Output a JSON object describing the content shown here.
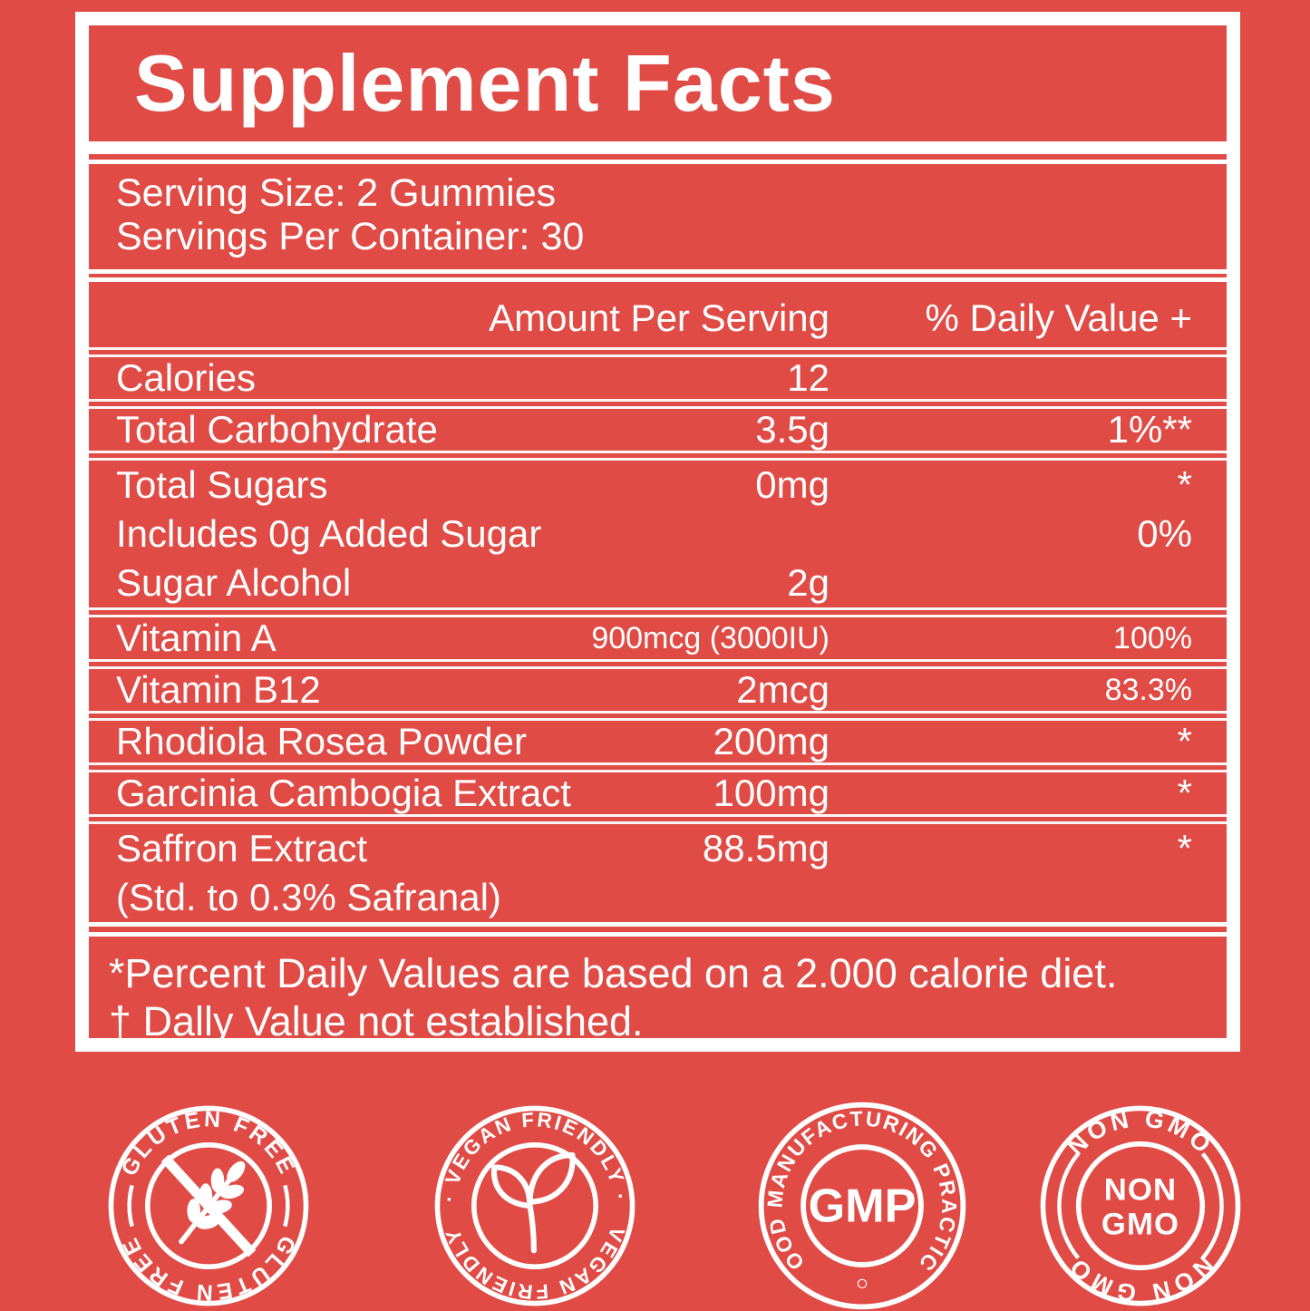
{
  "colors": {
    "background": "#e04b45",
    "foreground": "#ffffff"
  },
  "title": "Supplement Facts",
  "serving_info": {
    "serving_size": "Serving Size: 2 Gummies",
    "servings_per_container": "Servings Per Container: 30"
  },
  "table": {
    "header": {
      "amount_col": "Amount Per Serving",
      "dv_col": "% Daily Value +"
    },
    "groups": [
      {
        "rows": [
          {
            "name": "Calories",
            "amount": "12",
            "dv": ""
          }
        ]
      },
      {
        "rows": [
          {
            "name": "Total Carbohydrate",
            "amount": "3.5g",
            "dv": "1%**"
          }
        ]
      },
      {
        "rows": [
          {
            "name": "Total Sugars",
            "amount": "0mg",
            "dv": "*"
          },
          {
            "name": "Includes 0g Added Sugar",
            "amount": "",
            "dv": "0%"
          },
          {
            "name": "Sugar Alcohol",
            "amount": "2g",
            "dv": ""
          }
        ]
      },
      {
        "rows": [
          {
            "name": "Vitamin A",
            "amount": "900mcg (3000IU)",
            "dv": "100%",
            "amount_small": true,
            "dv_small": true
          }
        ]
      },
      {
        "rows": [
          {
            "name": "Vitamin B12",
            "amount": "2mcg",
            "dv": "83.3%",
            "dv_small": true
          }
        ]
      },
      {
        "rows": [
          {
            "name": "Rhodiola Rosea Powder",
            "amount": "200mg",
            "dv": "*"
          }
        ]
      },
      {
        "rows": [
          {
            "name": "Garcinia Cambogia Extract",
            "amount": "100mg",
            "dv": "*"
          }
        ]
      },
      {
        "rows": [
          {
            "name": "Saffron Extract",
            "amount": "88.5mg",
            "dv": "*"
          },
          {
            "name": "(Std. to 0.3% Safranal)",
            "amount": "",
            "dv": ""
          }
        ]
      }
    ]
  },
  "footnotes": {
    "line1": "*Percent Daily Values are based on a 2.000 calorie diet.",
    "line2": "† Dally Value not established."
  },
  "badges": [
    {
      "name": "gluten-free",
      "top_text": "GLUTEN FREE",
      "bottom_text": "GLUTEN FREE",
      "icon": "wheat-crossed-icon"
    },
    {
      "name": "vegan-friendly",
      "top_text": "· VEGAN FRIENDLY ·",
      "bottom_text": "VEGAN FRIENDLY",
      "icon": "leaf-sprout-icon"
    },
    {
      "name": "gmp",
      "ring_text": "GOOD MANUFACTURING PRACTICE",
      "center_text": "GMP"
    },
    {
      "name": "non-gmo",
      "top_text": "NON GMO",
      "bottom_text": "NON GMO",
      "center_line1": "NON",
      "center_line2": "GMO"
    }
  ]
}
